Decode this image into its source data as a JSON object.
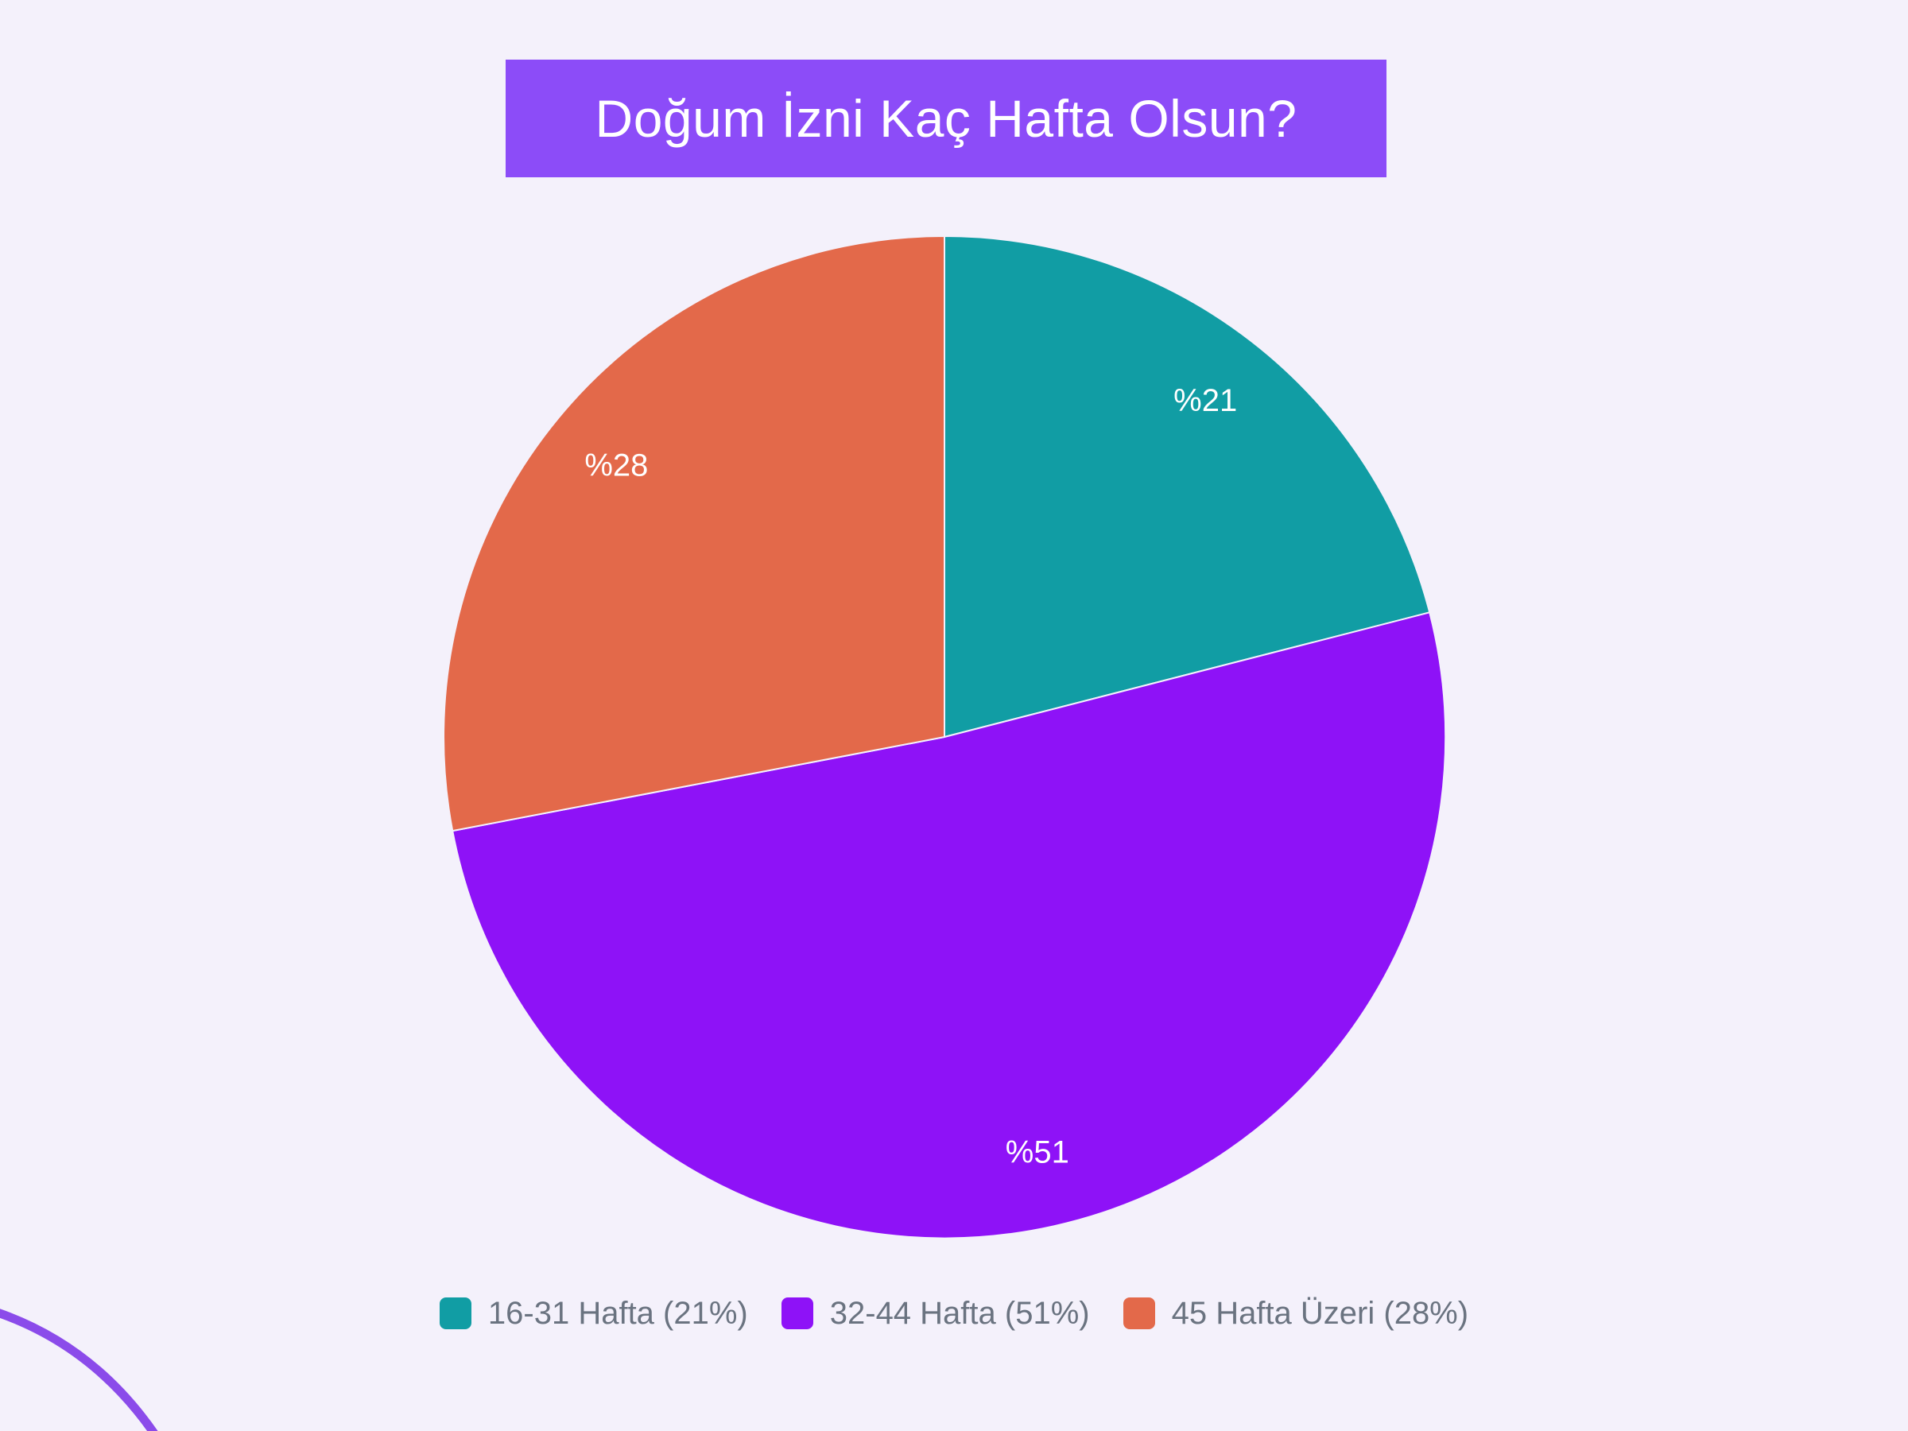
{
  "page": {
    "background_color": "#F4F1FB"
  },
  "header": {
    "title": "Doğum İzni Kaç Hafta Olsun?",
    "banner_color": "#8C4CF8",
    "title_color": "#FFFFFF"
  },
  "chart_data": {
    "type": "pie",
    "title": "Doğum İzni Kaç Hafta Olsun?",
    "direction": "clockwise",
    "start_angle_deg": 0,
    "legend_position": "bottom",
    "grid": false,
    "categories": [
      "16-31 Hafta",
      "32-44 Hafta",
      "45 Hafta Üzeri"
    ],
    "values": [
      21,
      51,
      28
    ],
    "slices": [
      {
        "label": "16-31 Hafta",
        "value": 21,
        "percent_label": "%21",
        "legend_label": "16-31 Hafta (21%)",
        "color": "#119DA4"
      },
      {
        "label": "32-44 Hafta",
        "value": 51,
        "percent_label": "%51",
        "legend_label": "32-44 Hafta (51%)",
        "color": "#8E12F7"
      },
      {
        "label": "45 Hafta Üzeri",
        "value": 28,
        "percent_label": "%28",
        "legend_label": "45 Hafta Üzeri (28%)",
        "color": "#E3694A"
      }
    ],
    "data_label_color": "#FFFFFF",
    "slice_gap_color": "#F4F1FB"
  },
  "legend": {
    "text_color": "#6A7380"
  },
  "decoration": {
    "corner_line_color": "#8B4BEA"
  }
}
